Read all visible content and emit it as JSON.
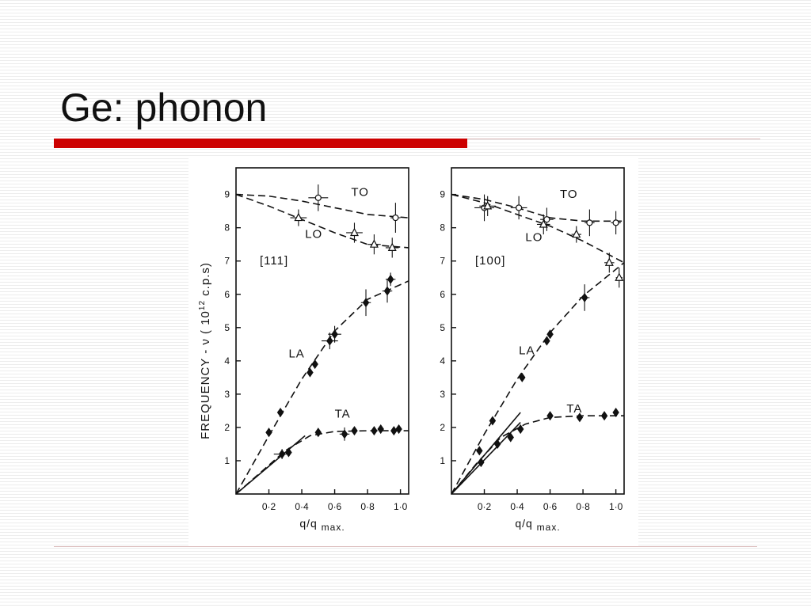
{
  "slide": {
    "title": "Ge: phonon",
    "accent_color": "#cc0000",
    "rule_color": "#d9b8b8"
  },
  "chart_data": {
    "type": "scatter",
    "y_axis_label": "FREQUENCY - ν ( 10^12 c.p.s)",
    "panels": [
      {
        "direction": "[111]",
        "xlim": [
          0,
          1.05
        ],
        "ylim": [
          0,
          9.8
        ],
        "xticks": [
          "0·2",
          "0·4",
          "0·6",
          "0·8",
          "1·0"
        ],
        "xtick_values": [
          0.2,
          0.4,
          0.6,
          0.8,
          1.0
        ],
        "yticks": [
          "1",
          "2",
          "3",
          "4",
          "5",
          "6",
          "7",
          "8",
          "9"
        ],
        "yvalues": [
          1,
          2,
          3,
          4,
          5,
          6,
          7,
          8,
          9
        ],
        "xlabel_main": "q/q",
        "xlabel_sub": "max.",
        "branches": [
          {
            "name": "TO",
            "marker": "circle-open",
            "label_at": [
              0.7,
              8.95
            ],
            "curve": [
              [
                0,
                9.0
              ],
              [
                0.2,
                8.95
              ],
              [
                0.4,
                8.8
              ],
              [
                0.6,
                8.6
              ],
              [
                0.8,
                8.4
              ],
              [
                1.05,
                8.3
              ]
            ],
            "points": [
              [
                0.5,
                8.9
              ],
              [
                0.97,
                8.3
              ]
            ],
            "errors": [
              [
                0.06,
                0.4
              ],
              [
                0.03,
                0.45
              ]
            ]
          },
          {
            "name": "LO",
            "marker": "triangle-open",
            "label_at": [
              0.42,
              7.7
            ],
            "curve": [
              [
                0,
                9.0
              ],
              [
                0.2,
                8.65
              ],
              [
                0.4,
                8.25
              ],
              [
                0.6,
                7.85
              ],
              [
                0.8,
                7.5
              ],
              [
                1.05,
                7.4
              ]
            ],
            "points": [
              [
                0.38,
                8.3
              ],
              [
                0.72,
                7.85
              ],
              [
                0.84,
                7.5
              ],
              [
                0.95,
                7.4
              ]
            ],
            "errors": [
              [
                0.05,
                0.25
              ],
              [
                0.05,
                0.3
              ],
              [
                0.04,
                0.3
              ],
              [
                0.04,
                0.3
              ]
            ]
          },
          {
            "name": "LA",
            "marker": "diamond-filled",
            "label_at": [
              0.32,
              4.1
            ],
            "curve": [
              [
                0,
                0
              ],
              [
                0.2,
                1.75
              ],
              [
                0.4,
                3.45
              ],
              [
                0.6,
                4.9
              ],
              [
                0.8,
                5.85
              ],
              [
                1.05,
                6.4
              ]
            ],
            "points": [
              [
                0.2,
                1.85
              ],
              [
                0.27,
                2.45
              ],
              [
                0.45,
                3.65
              ],
              [
                0.48,
                3.9
              ],
              [
                0.57,
                4.6
              ],
              [
                0.6,
                4.8
              ],
              [
                0.79,
                5.75
              ],
              [
                0.92,
                6.1
              ],
              [
                0.94,
                6.45
              ]
            ],
            "errors": [
              [
                0,
                0
              ],
              [
                0,
                0
              ],
              [
                0,
                0
              ],
              [
                0,
                0
              ],
              [
                0.05,
                0.25
              ],
              [
                0.04,
                0.25
              ],
              [
                0.03,
                0.4
              ],
              [
                0.03,
                0.35
              ],
              [
                0.03,
                0.2
              ]
            ]
          },
          {
            "name": "TA",
            "marker": "diamond-filled",
            "label_at": [
              0.6,
              2.3
            ],
            "curve": [
              [
                0,
                0
              ],
              [
                0.15,
                0.65
              ],
              [
                0.3,
                1.3
              ],
              [
                0.45,
                1.75
              ],
              [
                0.6,
                1.88
              ],
              [
                0.8,
                1.9
              ],
              [
                1.05,
                1.9
              ]
            ],
            "points": [
              [
                0.28,
                1.2
              ],
              [
                0.32,
                1.25
              ],
              [
                0.5,
                1.85
              ],
              [
                0.66,
                1.8
              ],
              [
                0.72,
                1.9
              ],
              [
                0.84,
                1.9
              ],
              [
                0.88,
                1.95
              ],
              [
                0.96,
                1.9
              ],
              [
                0.99,
                1.95
              ]
            ],
            "errors": [
              [
                0.05,
                0.15
              ],
              [
                0,
                0
              ],
              [
                0,
                0
              ],
              [
                0.03,
                0.2
              ],
              [
                0,
                0
              ],
              [
                0,
                0
              ],
              [
                0,
                0
              ],
              [
                0,
                0
              ],
              [
                0,
                0
              ]
            ]
          }
        ],
        "elastic_lines": [
          [
            [
              0,
              0
            ],
            [
              0.42,
              1.75
            ]
          ]
        ]
      },
      {
        "direction": "[100]",
        "xlim": [
          0,
          1.05
        ],
        "ylim": [
          0,
          9.8
        ],
        "xticks": [
          "0·2",
          "0·4",
          "0·6",
          "0·8",
          "1·0"
        ],
        "xtick_values": [
          0.2,
          0.4,
          0.6,
          0.8,
          1.0
        ],
        "yticks": [
          "1",
          "2",
          "3",
          "4",
          "5",
          "6",
          "7",
          "8",
          "9"
        ],
        "yvalues": [
          1,
          2,
          3,
          4,
          5,
          6,
          7,
          8,
          9
        ],
        "xlabel_main": "q/q",
        "xlabel_sub": "max.",
        "branches": [
          {
            "name": "TO",
            "marker": "circle-open",
            "label_at": [
              0.66,
              8.9
            ],
            "curve": [
              [
                0,
                9.0
              ],
              [
                0.2,
                8.85
              ],
              [
                0.4,
                8.6
              ],
              [
                0.6,
                8.3
              ],
              [
                0.8,
                8.2
              ],
              [
                1.05,
                8.2
              ]
            ],
            "points": [
              [
                0.2,
                8.6
              ],
              [
                0.41,
                8.6
              ],
              [
                0.58,
                8.25
              ],
              [
                0.84,
                8.15
              ],
              [
                1.0,
                8.15
              ]
            ],
            "errors": [
              [
                0.06,
                0.4
              ],
              [
                0.05,
                0.35
              ],
              [
                0.04,
                0.35
              ],
              [
                0.03,
                0.4
              ],
              [
                0.03,
                0.35
              ]
            ]
          },
          {
            "name": "LO",
            "marker": "triangle-open",
            "label_at": [
              0.45,
              7.6
            ],
            "curve": [
              [
                0,
                9.0
              ],
              [
                0.2,
                8.75
              ],
              [
                0.4,
                8.4
              ],
              [
                0.6,
                8.05
              ],
              [
                0.8,
                7.6
              ],
              [
                1.05,
                6.95
              ]
            ],
            "points": [
              [
                0.22,
                8.65
              ],
              [
                0.56,
                8.1
              ],
              [
                0.76,
                7.8
              ],
              [
                0.96,
                6.95
              ],
              [
                1.02,
                6.5
              ]
            ],
            "errors": [
              [
                0.05,
                0.3
              ],
              [
                0.04,
                0.3
              ],
              [
                0.03,
                0.25
              ],
              [
                0.03,
                0.3
              ],
              [
                0.02,
                0.3
              ]
            ]
          },
          {
            "name": "LA",
            "marker": "diamond-filled",
            "label_at": [
              0.41,
              4.2
            ],
            "curve": [
              [
                0,
                0
              ],
              [
                0.2,
                1.8
              ],
              [
                0.4,
                3.45
              ],
              [
                0.6,
                4.85
              ],
              [
                0.8,
                5.95
              ],
              [
                1.05,
                6.95
              ]
            ],
            "points": [
              [
                0.17,
                1.3
              ],
              [
                0.25,
                2.2
              ],
              [
                0.43,
                3.5
              ],
              [
                0.58,
                4.6
              ],
              [
                0.6,
                4.8
              ],
              [
                0.81,
                5.9
              ]
            ],
            "errors": [
              [
                0,
                0
              ],
              [
                0,
                0
              ],
              [
                0,
                0
              ],
              [
                0,
                0
              ],
              [
                0,
                0
              ],
              [
                0.03,
                0.4
              ]
            ]
          },
          {
            "name": "TA",
            "marker": "diamond-filled",
            "label_at": [
              0.7,
              2.45
            ],
            "curve": [
              [
                0,
                0
              ],
              [
                0.15,
                0.9
              ],
              [
                0.3,
                1.7
              ],
              [
                0.45,
                2.1
              ],
              [
                0.6,
                2.3
              ],
              [
                0.8,
                2.35
              ],
              [
                1.05,
                2.35
              ]
            ],
            "points": [
              [
                0.18,
                0.95
              ],
              [
                0.28,
                1.5
              ],
              [
                0.36,
                1.7
              ],
              [
                0.42,
                1.95
              ],
              [
                0.6,
                2.35
              ],
              [
                0.78,
                2.3
              ],
              [
                0.93,
                2.35
              ],
              [
                1.0,
                2.45
              ]
            ],
            "errors": [
              [
                0,
                0
              ],
              [
                0,
                0
              ],
              [
                0,
                0
              ],
              [
                0,
                0
              ],
              [
                0,
                0
              ],
              [
                0,
                0
              ],
              [
                0,
                0
              ],
              [
                0,
                0
              ]
            ]
          }
        ],
        "elastic_lines": [
          [
            [
              0,
              0
            ],
            [
              0.42,
              2.45
            ]
          ],
          [
            [
              0,
              0
            ],
            [
              0.42,
              2.15
            ]
          ]
        ]
      }
    ]
  }
}
